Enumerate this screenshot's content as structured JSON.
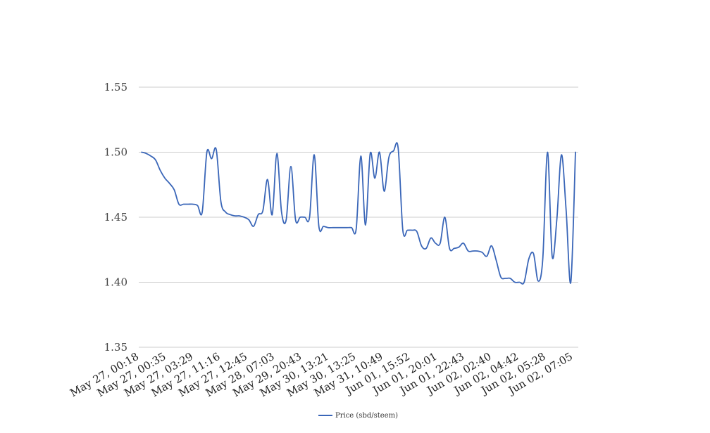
{
  "chart_data": {
    "type": "line",
    "title": "",
    "xlabel": "",
    "ylabel": "",
    "ylim": [
      1.35,
      1.55
    ],
    "yticks": [
      "1.35",
      "1.40",
      "1.45",
      "1.50",
      "1.55"
    ],
    "grid": "horizontal",
    "legend_position": "bottom",
    "series_color": "#3a66b8",
    "grid_color": "#cccccc",
    "x_tick_labels": [
      "May 27, 00:18",
      "May 27, 00:35",
      "May 27, 03:29",
      "May 27, 11:16",
      "May 27, 12:45",
      "May 28, 07:03",
      "May 29, 20:43",
      "May 30, 13:21",
      "May 30, 13:25",
      "May 31, 10:49",
      "Jun 01, 15:52",
      "Jun 01, 20:01",
      "Jun 01, 22:43",
      "Jun 02, 02:40",
      "Jun 02, 04:42",
      "Jun 02, 05:28",
      "Jun 02, 07:05"
    ],
    "series": [
      {
        "name": "Price (sbd/steem)",
        "values": [
          1.5,
          1.499,
          1.497,
          1.494,
          1.486,
          1.48,
          1.476,
          1.471,
          1.46,
          1.46,
          1.46,
          1.46,
          1.459,
          1.454,
          1.5,
          1.495,
          1.502,
          1.462,
          1.454,
          1.452,
          1.451,
          1.451,
          1.45,
          1.448,
          1.443,
          1.452,
          1.455,
          1.479,
          1.452,
          1.499,
          1.454,
          1.448,
          1.489,
          1.448,
          1.45,
          1.45,
          1.45,
          1.498,
          1.443,
          1.443,
          1.442,
          1.442,
          1.442,
          1.442,
          1.442,
          1.442,
          1.441,
          1.497,
          1.444,
          1.499,
          1.48,
          1.5,
          1.47,
          1.496,
          1.501,
          1.503,
          1.44,
          1.44,
          1.44,
          1.439,
          1.428,
          1.426,
          1.434,
          1.43,
          1.43,
          1.45,
          1.426,
          1.426,
          1.427,
          1.43,
          1.424,
          1.424,
          1.424,
          1.423,
          1.42,
          1.428,
          1.417,
          1.404,
          1.403,
          1.403,
          1.4,
          1.4,
          1.4,
          1.418,
          1.422,
          1.401,
          1.418,
          1.5,
          1.42,
          1.448,
          1.498,
          1.455,
          1.4,
          1.5
        ]
      }
    ]
  }
}
